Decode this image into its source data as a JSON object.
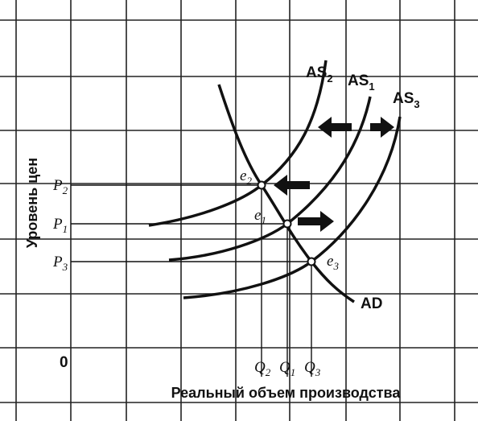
{
  "axes": {
    "origin": "0",
    "y_label": "Уровень цен",
    "x_label": "Реальный объем производства"
  },
  "curves": [
    {
      "name": "AS",
      "sub": "2"
    },
    {
      "name": "AS",
      "sub": "1"
    },
    {
      "name": "AS",
      "sub": "3"
    },
    {
      "name": "AD"
    }
  ],
  "equilibria": [
    {
      "label": "e",
      "sub": "2"
    },
    {
      "label": "e",
      "sub": "1"
    },
    {
      "label": "e",
      "sub": "3"
    }
  ],
  "price_levels": [
    {
      "label": "P",
      "sub": "2"
    },
    {
      "label": "P",
      "sub": "1"
    },
    {
      "label": "P",
      "sub": "3"
    }
  ],
  "quantities": [
    {
      "label": "Q",
      "sub": "2"
    },
    {
      "label": "Q",
      "sub": "1"
    },
    {
      "label": "Q",
      "sub": "3"
    }
  ]
}
